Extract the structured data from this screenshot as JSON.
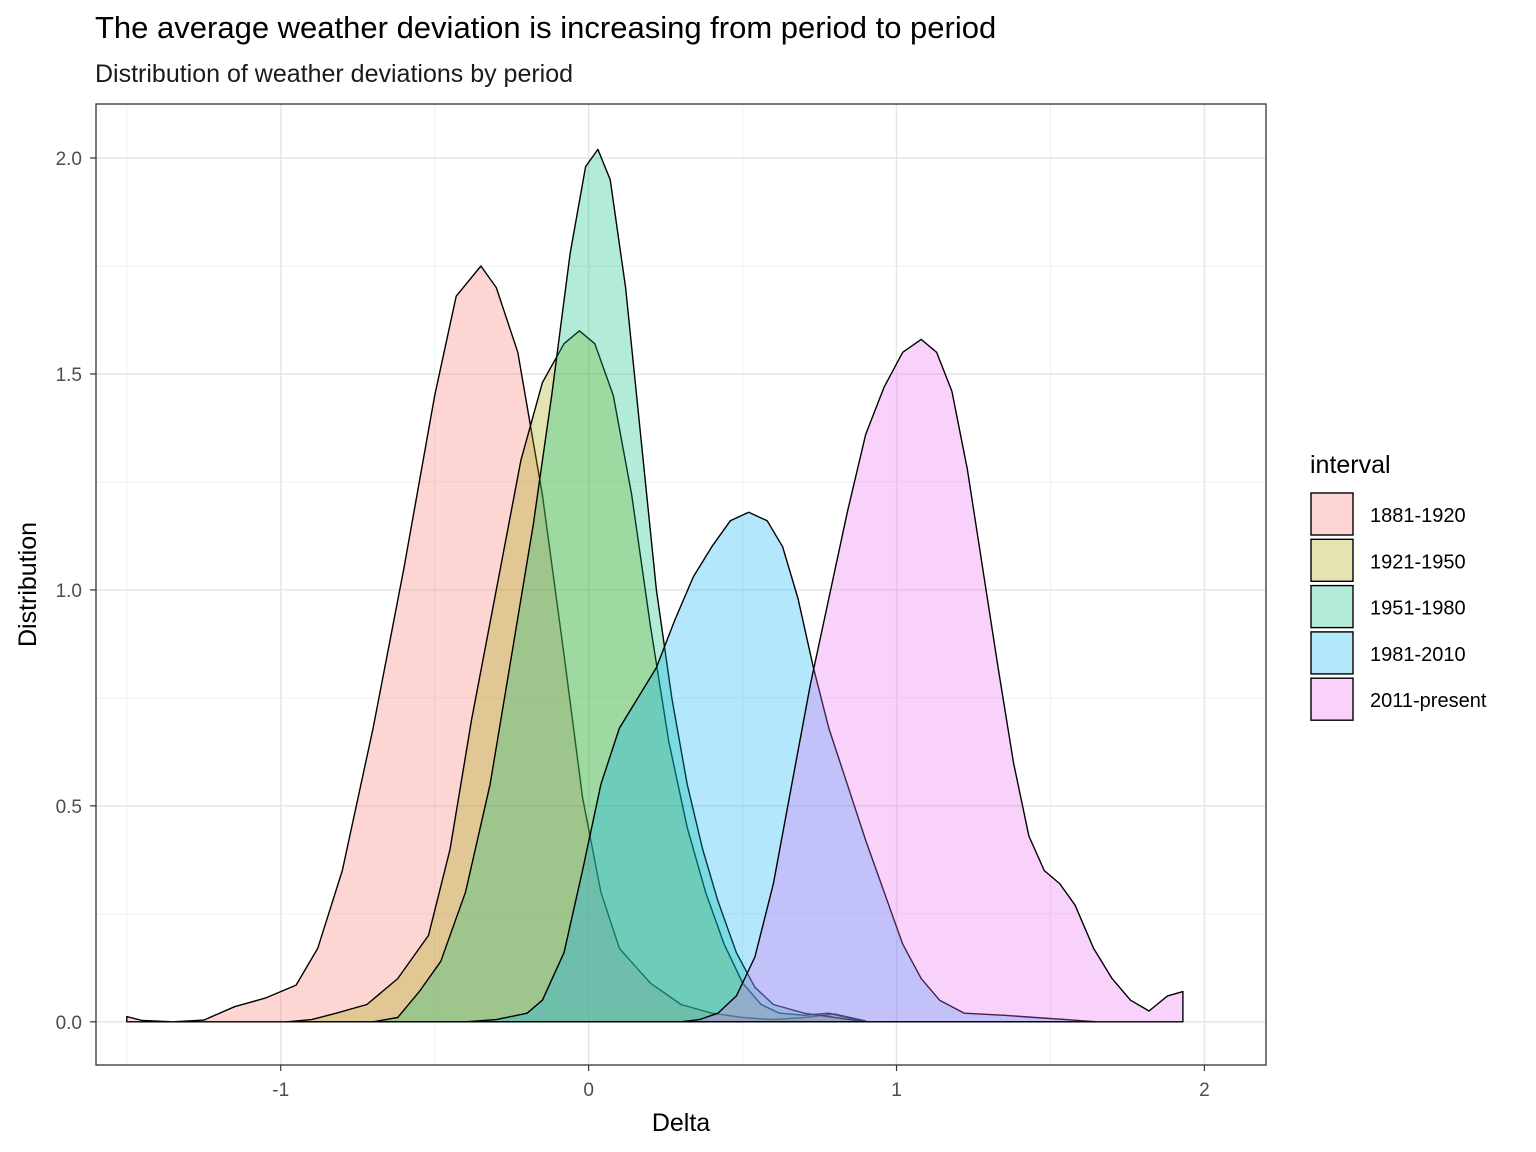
{
  "chart_data": {
    "type": "area",
    "title": "The average weather deviation is increasing from period to period",
    "subtitle": "Distribution of weather deviations by period",
    "xlabel": "Delta",
    "ylabel": "Distribution",
    "xlim": [
      -1.6,
      2.2
    ],
    "ylim": [
      -0.1,
      2.125
    ],
    "x_ticks": [
      -1,
      0,
      1,
      2
    ],
    "x_tick_labels": [
      "-1",
      "0",
      "1",
      "2"
    ],
    "y_ticks": [
      0.0,
      0.5,
      1.0,
      1.5,
      2.0
    ],
    "y_tick_labels": [
      "0.0",
      "0.5",
      "1.0",
      "1.5",
      "2.0"
    ],
    "grid": true,
    "legend": {
      "title": "interval",
      "position": "right"
    },
    "series": [
      {
        "name": "1881-1920",
        "color": "#F8766D",
        "points": [
          [
            -1.5,
            0.012
          ],
          [
            -1.45,
            0.003
          ],
          [
            -1.35,
            0.0
          ],
          [
            -1.25,
            0.004
          ],
          [
            -1.15,
            0.035
          ],
          [
            -1.05,
            0.055
          ],
          [
            -0.95,
            0.085
          ],
          [
            -0.88,
            0.17
          ],
          [
            -0.8,
            0.35
          ],
          [
            -0.7,
            0.68
          ],
          [
            -0.6,
            1.05
          ],
          [
            -0.5,
            1.45
          ],
          [
            -0.43,
            1.68
          ],
          [
            -0.35,
            1.75
          ],
          [
            -0.3,
            1.7
          ],
          [
            -0.23,
            1.55
          ],
          [
            -0.15,
            1.22
          ],
          [
            -0.08,
            0.85
          ],
          [
            -0.02,
            0.52
          ],
          [
            0.04,
            0.3
          ],
          [
            0.1,
            0.17
          ],
          [
            0.2,
            0.09
          ],
          [
            0.3,
            0.04
          ],
          [
            0.4,
            0.02
          ],
          [
            0.5,
            0.01
          ],
          [
            0.6,
            0.005
          ],
          [
            0.7,
            0.01
          ],
          [
            0.8,
            0.018
          ],
          [
            0.85,
            0.01
          ],
          [
            0.9,
            0.002
          ]
        ]
      },
      {
        "name": "1921-1950",
        "color": "#A3A500",
        "points": [
          [
            -0.98,
            0.0
          ],
          [
            -0.9,
            0.005
          ],
          [
            -0.82,
            0.02
          ],
          [
            -0.72,
            0.04
          ],
          [
            -0.62,
            0.1
          ],
          [
            -0.52,
            0.2
          ],
          [
            -0.45,
            0.4
          ],
          [
            -0.38,
            0.7
          ],
          [
            -0.3,
            1.0
          ],
          [
            -0.22,
            1.3
          ],
          [
            -0.15,
            1.48
          ],
          [
            -0.08,
            1.57
          ],
          [
            -0.03,
            1.6
          ],
          [
            0.02,
            1.57
          ],
          [
            0.08,
            1.45
          ],
          [
            0.14,
            1.22
          ],
          [
            0.2,
            0.92
          ],
          [
            0.26,
            0.65
          ],
          [
            0.32,
            0.45
          ],
          [
            0.38,
            0.3
          ],
          [
            0.44,
            0.18
          ],
          [
            0.5,
            0.09
          ],
          [
            0.56,
            0.04
          ],
          [
            0.62,
            0.02
          ],
          [
            0.7,
            0.015
          ],
          [
            0.78,
            0.02
          ],
          [
            0.84,
            0.01
          ],
          [
            0.9,
            0.0
          ]
        ]
      },
      {
        "name": "1951-1980",
        "color": "#00BF7D",
        "points": [
          [
            -0.7,
            0.0
          ],
          [
            -0.62,
            0.01
          ],
          [
            -0.55,
            0.07
          ],
          [
            -0.48,
            0.14
          ],
          [
            -0.4,
            0.3
          ],
          [
            -0.32,
            0.55
          ],
          [
            -0.25,
            0.85
          ],
          [
            -0.18,
            1.15
          ],
          [
            -0.12,
            1.45
          ],
          [
            -0.06,
            1.78
          ],
          [
            -0.01,
            1.98
          ],
          [
            0.03,
            2.02
          ],
          [
            0.07,
            1.95
          ],
          [
            0.12,
            1.7
          ],
          [
            0.17,
            1.35
          ],
          [
            0.22,
            1.0
          ],
          [
            0.27,
            0.75
          ],
          [
            0.32,
            0.55
          ],
          [
            0.37,
            0.4
          ],
          [
            0.42,
            0.28
          ],
          [
            0.48,
            0.16
          ],
          [
            0.54,
            0.08
          ],
          [
            0.6,
            0.04
          ],
          [
            0.7,
            0.02
          ],
          [
            0.8,
            0.01
          ],
          [
            0.9,
            0.0
          ]
        ]
      },
      {
        "name": "1981-2010",
        "color": "#00B0F6",
        "points": [
          [
            -0.4,
            0.0
          ],
          [
            -0.3,
            0.005
          ],
          [
            -0.2,
            0.02
          ],
          [
            -0.15,
            0.05
          ],
          [
            -0.08,
            0.16
          ],
          [
            -0.02,
            0.35
          ],
          [
            0.04,
            0.55
          ],
          [
            0.1,
            0.68
          ],
          [
            0.16,
            0.75
          ],
          [
            0.22,
            0.82
          ],
          [
            0.28,
            0.93
          ],
          [
            0.34,
            1.03
          ],
          [
            0.4,
            1.1
          ],
          [
            0.46,
            1.16
          ],
          [
            0.52,
            1.18
          ],
          [
            0.58,
            1.16
          ],
          [
            0.63,
            1.1
          ],
          [
            0.68,
            0.98
          ],
          [
            0.73,
            0.82
          ],
          [
            0.78,
            0.68
          ],
          [
            0.84,
            0.55
          ],
          [
            0.9,
            0.42
          ],
          [
            0.96,
            0.3
          ],
          [
            1.02,
            0.18
          ],
          [
            1.08,
            0.1
          ],
          [
            1.14,
            0.05
          ],
          [
            1.22,
            0.02
          ],
          [
            1.35,
            0.015
          ],
          [
            1.45,
            0.01
          ],
          [
            1.55,
            0.005
          ],
          [
            1.65,
            0.0
          ]
        ]
      },
      {
        "name": "2011-present",
        "color": "#E76BF3",
        "points": [
          [
            0.3,
            0.0
          ],
          [
            0.36,
            0.005
          ],
          [
            0.42,
            0.02
          ],
          [
            0.48,
            0.06
          ],
          [
            0.54,
            0.15
          ],
          [
            0.6,
            0.32
          ],
          [
            0.66,
            0.55
          ],
          [
            0.72,
            0.78
          ],
          [
            0.78,
            0.98
          ],
          [
            0.84,
            1.18
          ],
          [
            0.9,
            1.36
          ],
          [
            0.96,
            1.47
          ],
          [
            1.02,
            1.55
          ],
          [
            1.08,
            1.58
          ],
          [
            1.13,
            1.55
          ],
          [
            1.18,
            1.46
          ],
          [
            1.23,
            1.28
          ],
          [
            1.28,
            1.05
          ],
          [
            1.33,
            0.82
          ],
          [
            1.38,
            0.6
          ],
          [
            1.43,
            0.43
          ],
          [
            1.48,
            0.35
          ],
          [
            1.53,
            0.32
          ],
          [
            1.58,
            0.27
          ],
          [
            1.64,
            0.17
          ],
          [
            1.7,
            0.1
          ],
          [
            1.76,
            0.05
          ],
          [
            1.82,
            0.025
          ],
          [
            1.88,
            0.06
          ],
          [
            1.93,
            0.07
          ]
        ]
      }
    ]
  }
}
